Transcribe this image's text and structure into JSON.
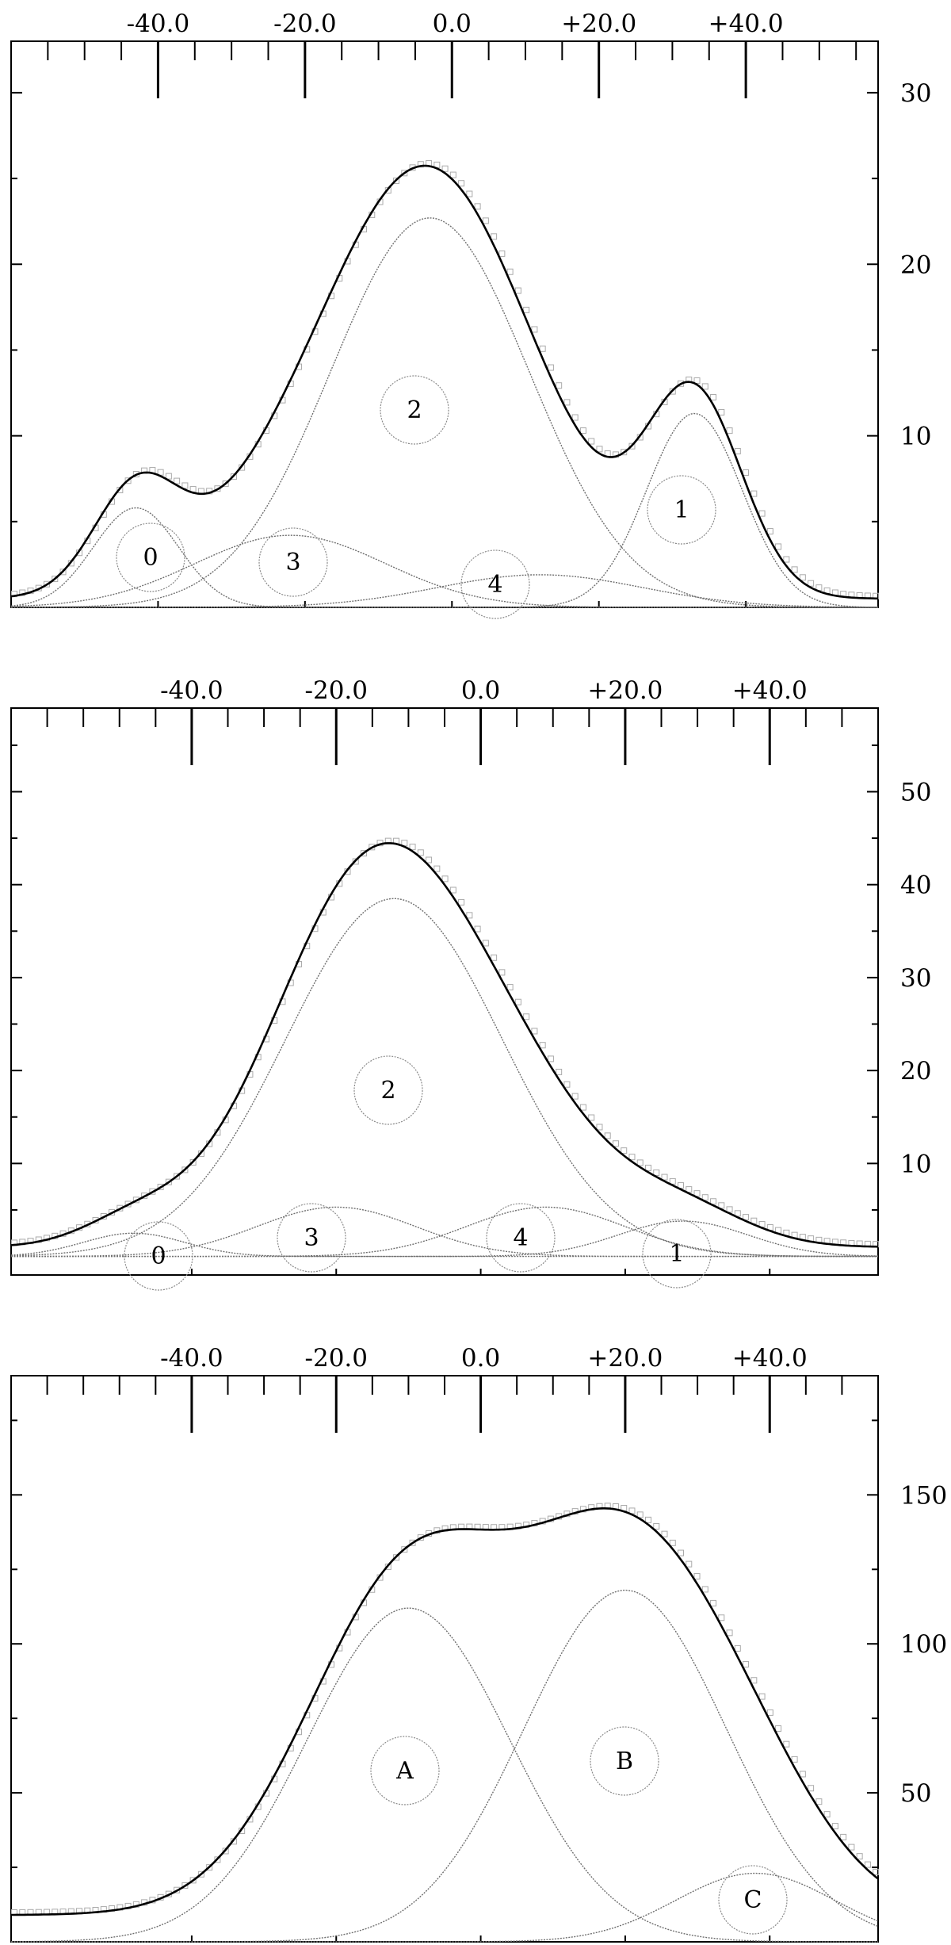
{
  "chart_data": [
    {
      "type": "line",
      "title": "",
      "xlabel": "",
      "ylabel": "",
      "xlim": [
        -60,
        58
      ],
      "ylim": [
        0,
        33
      ],
      "x_ticks": [
        "-40.0",
        "-20.0",
        "0.0",
        "+20.0",
        "+40.0"
      ],
      "x_tick_values": [
        -40,
        -20,
        0,
        20,
        40
      ],
      "y_ticks": [
        "10",
        "20",
        "30"
      ],
      "y_tick_values": [
        10,
        20,
        30
      ],
      "grid": false,
      "components": [
        {
          "label": "0",
          "center": -43,
          "height": 5.8,
          "sigma": 5.8
        },
        {
          "label": "1",
          "center": 33,
          "height": 11.3,
          "sigma": 6.5
        },
        {
          "label": "2",
          "center": -3,
          "height": 22.7,
          "sigma": 13.5
        },
        {
          "label": "3",
          "center": -22,
          "height": 4.2,
          "sigma": 13
        },
        {
          "label": "4",
          "center": 12,
          "height": 1.9,
          "sigma": 14
        }
      ],
      "baseline": 0.5
    },
    {
      "type": "line",
      "title": "",
      "xlabel": "",
      "ylabel": "",
      "xlim": [
        -65,
        55
      ],
      "ylim": [
        -2,
        59
      ],
      "x_ticks": [
        "-40.0",
        "-20.0",
        "0.0",
        "+20.0",
        "+40.0"
      ],
      "x_tick_values": [
        -40,
        -20,
        0,
        20,
        40
      ],
      "y_ticks": [
        "10",
        "20",
        "30",
        "40",
        "50"
      ],
      "y_tick_values": [
        10,
        20,
        30,
        40,
        50
      ],
      "grid": false,
      "components": [
        {
          "label": "0",
          "center": -48,
          "height": 2.5,
          "sigma": 7
        },
        {
          "label": "1",
          "center": 28,
          "height": 3.8,
          "sigma": 9
        },
        {
          "label": "2",
          "center": -12,
          "height": 38.5,
          "sigma": 15
        },
        {
          "label": "3",
          "center": -20,
          "height": 5.3,
          "sigma": 11
        },
        {
          "label": "4",
          "center": 9,
          "height": 5.3,
          "sigma": 11
        }
      ],
      "baseline": 1.0
    },
    {
      "type": "line",
      "title": "",
      "xlabel": "",
      "ylabel": "",
      "xlim": [
        -65,
        55
      ],
      "ylim": [
        0,
        190
      ],
      "x_ticks": [
        "-40.0",
        "-20.0",
        "0.0",
        "+20.0",
        "+40.0"
      ],
      "x_tick_values": [
        -40,
        -20,
        0,
        20,
        40
      ],
      "y_ticks": [
        "50",
        "100",
        "150"
      ],
      "y_tick_values": [
        50,
        100,
        150
      ],
      "grid": false,
      "components": [
        {
          "label": "A",
          "center": -10,
          "height": 112,
          "sigma": 14
        },
        {
          "label": "B",
          "center": 20,
          "height": 118,
          "sigma": 14
        },
        {
          "label": "C",
          "center": 38,
          "height": 23,
          "sigma": 11
        }
      ],
      "baseline": 9.0
    }
  ]
}
